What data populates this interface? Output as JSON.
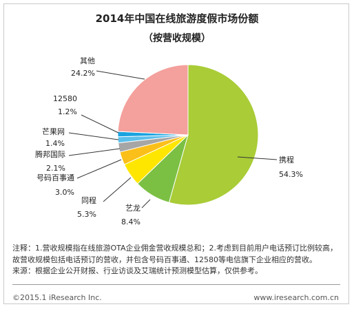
{
  "chart_data": {
    "type": "pie",
    "title": "2014年中国在线旅游度假市场份额",
    "subtitle": "（按营收规模）",
    "slices": [
      {
        "name": "携程",
        "value": 54.3,
        "label": "54.3%",
        "color": "#a9cc37"
      },
      {
        "name": "艺龙",
        "value": 8.4,
        "label": "8.4%",
        "color": "#7bc043"
      },
      {
        "name": "同程",
        "value": 5.3,
        "label": "5.3%",
        "color": "#ffe600"
      },
      {
        "name": "号码百事通",
        "value": 3.0,
        "label": "3.0%",
        "color": "#fbbf1a"
      },
      {
        "name": "腾邦国际",
        "value": 2.1,
        "label": "2.1%",
        "color": "#a6a6a6"
      },
      {
        "name": "芒果网",
        "value": 1.4,
        "label": "1.4%",
        "color": "#5bc0eb"
      },
      {
        "name": "12580",
        "value": 1.2,
        "label": "1.2%",
        "color": "#1aa3e0"
      },
      {
        "name": "其他",
        "value": 24.2,
        "label": "24.2%",
        "color": "#f4a09c"
      }
    ]
  },
  "note": "注释：1.营收规模指在线旅游OTA企业佣金营收规模总和；2.考虑到目前用户电话预订比例较高，故营收规模包括电话预订的营收，并包含号码百事通、12580等电信旗下企业相应的营收。",
  "source": "来源：根据企业公开财报、行业访谈及艾瑞统计预测模型估算，仅供参考。",
  "footer": {
    "left": "©2015.1 iResearch Inc.",
    "right": "www.iresearch.com.cn"
  }
}
